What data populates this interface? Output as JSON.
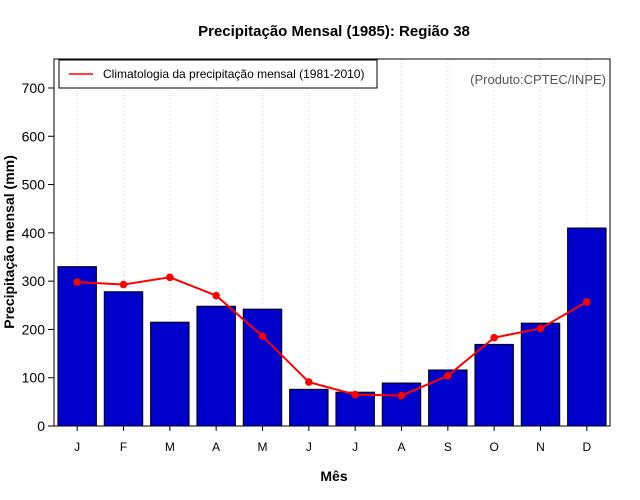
{
  "chart_data": {
    "type": "bar",
    "title": "Precipitação Mensal (1985): Região 38",
    "xlabel": "Mês",
    "ylabel": "Precipitação mensal (mm)",
    "credit": "(Produto:CPTEC/INPE)",
    "categories": [
      "J",
      "F",
      "M",
      "A",
      "M",
      "J",
      "J",
      "A",
      "S",
      "O",
      "N",
      "D"
    ],
    "ylim": [
      0,
      760
    ],
    "yticks": [
      0,
      100,
      200,
      300,
      400,
      500,
      600,
      700
    ],
    "grid": "vertical dotted",
    "legend_position": "top-left",
    "series": [
      {
        "name": "Precipitação mensal (1985)",
        "type": "bar",
        "color": "#0000cc",
        "values": [
          330,
          278,
          215,
          248,
          242,
          76,
          70,
          89,
          116,
          169,
          213,
          410
        ]
      },
      {
        "name": "Climatologia da precipitação mensal (1981-2010)",
        "type": "line",
        "color": "#ff0000",
        "values": [
          298,
          293,
          308,
          270,
          186,
          91,
          65,
          63,
          104,
          183,
          202,
          257
        ]
      }
    ]
  }
}
